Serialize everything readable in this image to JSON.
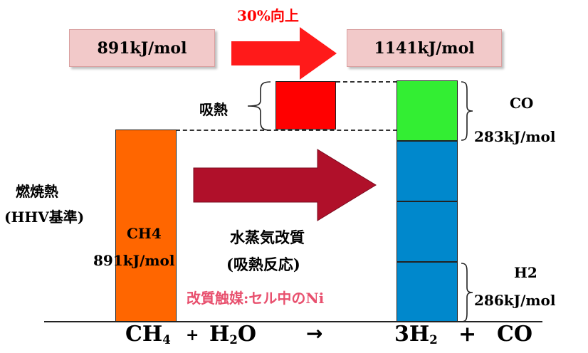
{
  "top": {
    "improvement_label": "30%向上",
    "left_value": "891kJ/mol",
    "right_value": "1141kJ/mol"
  },
  "labels": {
    "endothermic": "吸熱",
    "combustion_heat_line1": "燃焼熱",
    "combustion_heat_line2": "(HHV基準)",
    "ch4_name": "CH4",
    "ch4_value": "891kJ/mol",
    "process_line1": "水蒸気改質",
    "process_line2": "(吸熱反応)",
    "catalyst": "改質触媒:セル中のNi",
    "co_name": "CO",
    "co_value": "283kJ/mol",
    "h2_name": "H2",
    "h2_value": "286kJ/mol"
  },
  "equation": {
    "ch4": "CH",
    "ch4_sub": "4",
    "plus1": "+",
    "h2o_h": "H",
    "h2o_sub": "2",
    "h2o_o": "O",
    "arrow": "→",
    "h2": "3H",
    "h2_sub": "2",
    "plus2": "+",
    "co": "CO"
  },
  "colors": {
    "ch4_bar": "#ff6600",
    "endothermic_bar": "#ff0000",
    "co_bar": "#33ee33",
    "h2_bar": "#0088cc",
    "big_arrow": "#b0102a",
    "top_arrow": "#ff1a1a",
    "catalyst_text": "#e8506e",
    "improvement_text": "#ff0000"
  }
}
